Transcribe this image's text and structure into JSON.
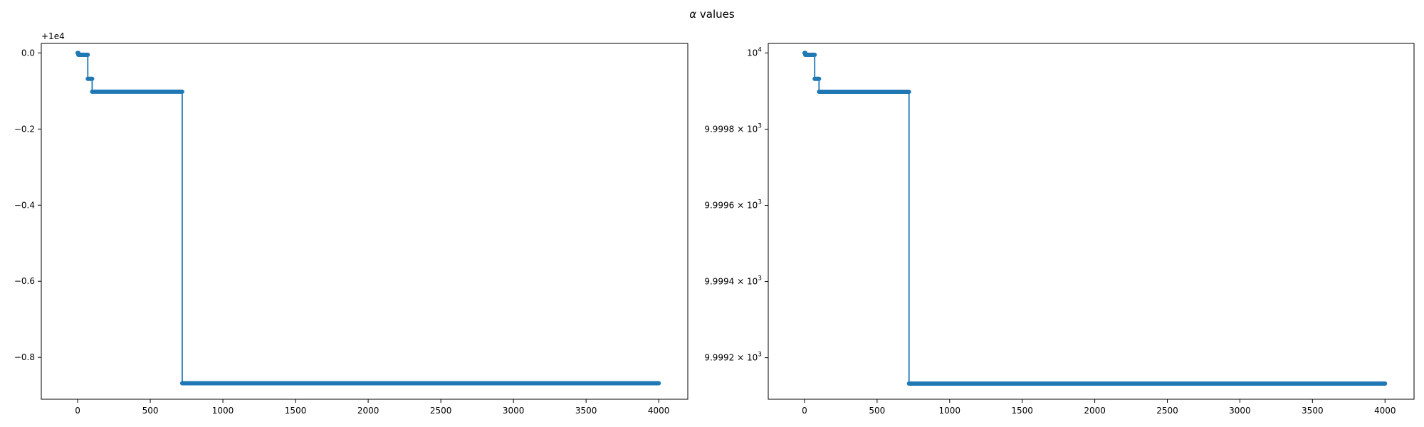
{
  "figure": {
    "suptitle_symbol": "α",
    "suptitle_text": " values"
  },
  "colors": {
    "series": "#1f77b4",
    "axes": "#000000",
    "background": "#ffffff"
  },
  "chart_data": [
    {
      "type": "line",
      "marker": "dot",
      "grid": false,
      "offset_label": "+1e4",
      "xlim": [
        -250,
        4200
      ],
      "ylim": [
        -0.91,
        0.025
      ],
      "xticks": [
        {
          "value": 0,
          "label": "0"
        },
        {
          "value": 500,
          "label": "500"
        },
        {
          "value": 1000,
          "label": "1000"
        },
        {
          "value": 1500,
          "label": "1500"
        },
        {
          "value": 2000,
          "label": "2000"
        },
        {
          "value": 2500,
          "label": "2500"
        },
        {
          "value": 3000,
          "label": "3000"
        },
        {
          "value": 3500,
          "label": "3500"
        },
        {
          "value": 4000,
          "label": "4000"
        }
      ],
      "yticks": [
        {
          "value": 0.0,
          "label": "0.0"
        },
        {
          "value": -0.2,
          "label": "−0.2"
        },
        {
          "value": -0.4,
          "label": "−0.4"
        },
        {
          "value": -0.6,
          "label": "−0.6"
        },
        {
          "value": -0.8,
          "label": "−0.8"
        }
      ],
      "segments": [
        {
          "x_start": 0,
          "x_end": 5,
          "y": 0.0
        },
        {
          "x_start": 5,
          "x_end": 70,
          "y": -0.005
        },
        {
          "x_start": 70,
          "x_end": 100,
          "y": -0.068
        },
        {
          "x_start": 100,
          "x_end": 720,
          "y": -0.102
        },
        {
          "x_start": 720,
          "x_end": 4000,
          "y": -0.868
        }
      ]
    },
    {
      "type": "line",
      "marker": "dot",
      "grid": false,
      "yscale": "log",
      "xlim": [
        -250,
        4200
      ],
      "ylim": [
        9999.091,
        10000.025
      ],
      "xticks": [
        {
          "value": 0,
          "label": "0"
        },
        {
          "value": 500,
          "label": "500"
        },
        {
          "value": 1000,
          "label": "1000"
        },
        {
          "value": 1500,
          "label": "1500"
        },
        {
          "value": 2000,
          "label": "2000"
        },
        {
          "value": 2500,
          "label": "2500"
        },
        {
          "value": 3000,
          "label": "3000"
        },
        {
          "value": 3500,
          "label": "3500"
        },
        {
          "value": 4000,
          "label": "4000"
        }
      ],
      "yticks": [
        {
          "value": 10000.0,
          "mantissa": "10",
          "exponent": "4"
        },
        {
          "value": 9999.8,
          "mantissa": "9.9998 × 10",
          "exponent": "3"
        },
        {
          "value": 9999.6,
          "mantissa": "9.9996 × 10",
          "exponent": "3"
        },
        {
          "value": 9999.4,
          "mantissa": "9.9994 × 10",
          "exponent": "3"
        },
        {
          "value": 9999.2,
          "mantissa": "9.9992 × 10",
          "exponent": "3"
        }
      ],
      "segments": [
        {
          "x_start": 0,
          "x_end": 5,
          "y": 10000.0
        },
        {
          "x_start": 5,
          "x_end": 70,
          "y": 9999.995
        },
        {
          "x_start": 70,
          "x_end": 100,
          "y": 9999.932
        },
        {
          "x_start": 100,
          "x_end": 720,
          "y": 9999.898
        },
        {
          "x_start": 720,
          "x_end": 4000,
          "y": 9999.132
        }
      ]
    }
  ]
}
